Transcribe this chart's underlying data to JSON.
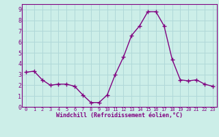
{
  "x": [
    0,
    1,
    2,
    3,
    4,
    5,
    6,
    7,
    8,
    9,
    10,
    11,
    12,
    13,
    14,
    15,
    16,
    17,
    18,
    19,
    20,
    21,
    22,
    23
  ],
  "y": [
    3.2,
    3.3,
    2.5,
    2.0,
    2.1,
    2.1,
    1.9,
    1.1,
    0.4,
    0.4,
    1.1,
    3.0,
    4.6,
    6.6,
    7.5,
    8.8,
    8.8,
    7.5,
    4.4,
    2.5,
    2.4,
    2.5,
    2.1,
    1.9
  ],
  "line_color": "#800080",
  "marker": "D",
  "marker_size": 2.5,
  "linewidth": 1.0,
  "bg_color": "#cceee8",
  "grid_color": "#b0d8d8",
  "xlabel": "Windchill (Refroidissement éolien,°C)",
  "xlabel_color": "#800080",
  "tick_color": "#800080",
  "xlim": [
    -0.5,
    23.5
  ],
  "ylim": [
    0,
    9.5
  ],
  "yticks": [
    0,
    1,
    2,
    3,
    4,
    5,
    6,
    7,
    8,
    9
  ],
  "xticks": [
    0,
    1,
    2,
    3,
    4,
    5,
    6,
    7,
    8,
    9,
    10,
    11,
    12,
    13,
    14,
    15,
    16,
    17,
    18,
    19,
    20,
    21,
    22,
    23
  ],
  "font_family": "monospace"
}
